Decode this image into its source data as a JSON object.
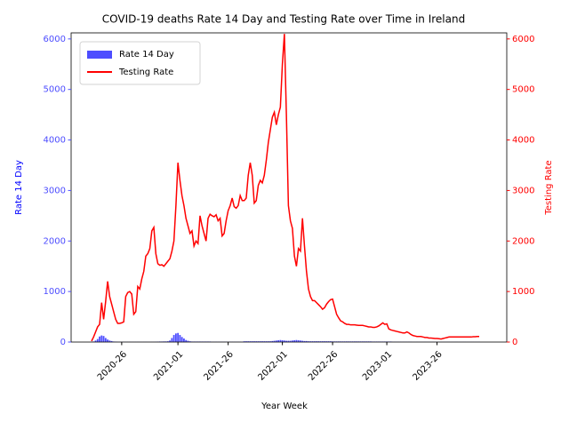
{
  "chart_data": {
    "type": "bar",
    "title": "COVID-19 deaths Rate 14 Day and Testing Rate over Time in Ireland",
    "x_label": "Year Week",
    "y_label": "Rate 14 Day",
    "y2_label": "Testing Rate",
    "legend": "upper left",
    "categories": [
      null,
      null,
      null,
      null,
      null,
      null,
      null,
      null,
      null,
      null,
      null,
      null,
      null,
      null,
      null,
      "2020-26",
      null,
      null,
      null,
      null,
      null,
      null,
      null,
      null,
      null,
      null,
      null,
      null,
      null,
      null,
      null,
      null,
      null,
      null,
      null,
      null,
      null,
      null,
      null,
      null,
      null,
      null,
      null,
      "2021-01",
      null,
      null,
      null,
      null,
      null,
      null,
      null,
      null,
      null,
      null,
      null,
      null,
      null,
      null,
      null,
      null,
      null,
      null,
      null,
      null,
      null,
      null,
      null,
      null,
      "2021-26",
      null,
      null,
      null,
      null,
      null,
      null,
      null,
      null,
      null,
      null,
      null,
      null,
      null,
      null,
      null,
      null,
      null,
      null,
      null,
      null,
      null,
      null,
      null,
      null,
      null,
      null,
      "2022-01",
      null,
      null,
      null,
      null,
      null,
      null,
      null,
      null,
      null,
      null,
      null,
      null,
      null,
      null,
      null,
      null,
      null,
      null,
      null,
      null,
      null,
      null,
      null,
      null,
      "2022-26",
      null,
      null,
      null,
      null,
      null,
      null,
      null,
      null,
      null,
      null,
      null,
      null,
      null,
      null,
      null,
      null,
      null,
      null,
      null,
      null,
      null,
      null,
      null,
      null,
      null,
      null,
      "2023-01",
      null,
      null,
      null,
      null,
      null,
      null,
      null,
      null,
      null,
      null,
      null,
      null,
      null,
      null,
      null,
      null,
      null,
      null,
      null,
      null,
      null,
      null,
      null,
      null,
      "2023-26",
      null,
      null,
      null,
      null,
      null,
      null,
      null,
      null,
      null,
      null,
      null,
      null,
      null,
      null,
      null,
      null,
      null,
      null,
      null,
      null,
      null
    ],
    "series": [
      {
        "name": "Rate 14 Day",
        "type": "bar",
        "color": "#4d4dff",
        "values": [
          5,
          10,
          30,
          60,
          110,
          130,
          120,
          80,
          50,
          30,
          20,
          10,
          8,
          5,
          3,
          3,
          3,
          3,
          3,
          3,
          3,
          3,
          3,
          3,
          3,
          3,
          3,
          3,
          3,
          3,
          3,
          3,
          5,
          8,
          10,
          10,
          12,
          12,
          15,
          30,
          80,
          140,
          170,
          180,
          140,
          100,
          70,
          40,
          25,
          15,
          10,
          10,
          10,
          10,
          10,
          10,
          10,
          10,
          10,
          10,
          5,
          5,
          5,
          5,
          5,
          5,
          5,
          5,
          5,
          5,
          5,
          5,
          5,
          5,
          5,
          5,
          15,
          15,
          15,
          15,
          15,
          15,
          15,
          15,
          15,
          15,
          15,
          15,
          15,
          15,
          20,
          25,
          30,
          35,
          40,
          35,
          30,
          25,
          25,
          25,
          30,
          35,
          40,
          35,
          30,
          25,
          20,
          20,
          15,
          15,
          15,
          15,
          15,
          15,
          15,
          15,
          15,
          15,
          15,
          15,
          12,
          12,
          12,
          12,
          12,
          12,
          12,
          12,
          12,
          12,
          12,
          12,
          12,
          12,
          12,
          12,
          12,
          12,
          12,
          12,
          10,
          10,
          10,
          10,
          10,
          10,
          10,
          10,
          10,
          10,
          5,
          5,
          5,
          5,
          5,
          5,
          5,
          5,
          5,
          5,
          3,
          3,
          3,
          3,
          3,
          3,
          3,
          3,
          3,
          3,
          3,
          3,
          3,
          3,
          3,
          3,
          3,
          3,
          3,
          3,
          3,
          3,
          3,
          3,
          3,
          3,
          3,
          3,
          3,
          3,
          3,
          3,
          3,
          3
        ]
      },
      {
        "name": "Testing Rate",
        "type": "line",
        "axis": "y2",
        "color": "#ff0000",
        "values": [
          20,
          100,
          200,
          300,
          350,
          780,
          450,
          800,
          1200,
          900,
          750,
          600,
          450,
          370,
          370,
          380,
          400,
          900,
          980,
          1000,
          950,
          550,
          600,
          1100,
          1050,
          1250,
          1400,
          1700,
          1750,
          1850,
          2200,
          2270,
          1750,
          1550,
          1520,
          1530,
          1500,
          1550,
          1600,
          1650,
          1800,
          2000,
          2700,
          3550,
          3200,
          2900,
          2700,
          2450,
          2300,
          2150,
          2200,
          1900,
          2000,
          1950,
          2500,
          2300,
          2150,
          2000,
          2450,
          2530,
          2500,
          2480,
          2520,
          2400,
          2450,
          2100,
          2150,
          2400,
          2600,
          2700,
          2850,
          2680,
          2650,
          2700,
          2900,
          2800,
          2800,
          2850,
          3300,
          3550,
          3300,
          2750,
          2800,
          3100,
          3200,
          3150,
          3300,
          3600,
          3950,
          4200,
          4450,
          4550,
          4300,
          4500,
          4650,
          5500,
          6100,
          4500,
          2700,
          2400,
          2250,
          1700,
          1500,
          1850,
          1800,
          2450,
          1900,
          1400,
          1050,
          900,
          820,
          820,
          780,
          740,
          700,
          650,
          680,
          750,
          800,
          840,
          850,
          700,
          550,
          480,
          420,
          400,
          370,
          350,
          350,
          340,
          340,
          340,
          335,
          330,
          330,
          330,
          320,
          310,
          300,
          300,
          290,
          290,
          300,
          320,
          350,
          380,
          350,
          360,
          260,
          240,
          230,
          220,
          210,
          200,
          190,
          180,
          180,
          200,
          180,
          150,
          130,
          120,
          110,
          110,
          110,
          100,
          90,
          90,
          80,
          80,
          75,
          70,
          70,
          65,
          60,
          70,
          80,
          90,
          100,
          100,
          100,
          100,
          100,
          100,
          100,
          100,
          100,
          100,
          100,
          100,
          105,
          105,
          110,
          110
        ]
      }
    ],
    "ylim": [
      0,
      6120
    ],
    "yticks": [
      0,
      1000,
      2000,
      3000,
      4000,
      5000,
      6000
    ],
    "y2lim": [
      0,
      6120
    ],
    "y2ticks": [
      0,
      1000,
      2000,
      3000,
      4000,
      5000,
      6000
    ]
  }
}
